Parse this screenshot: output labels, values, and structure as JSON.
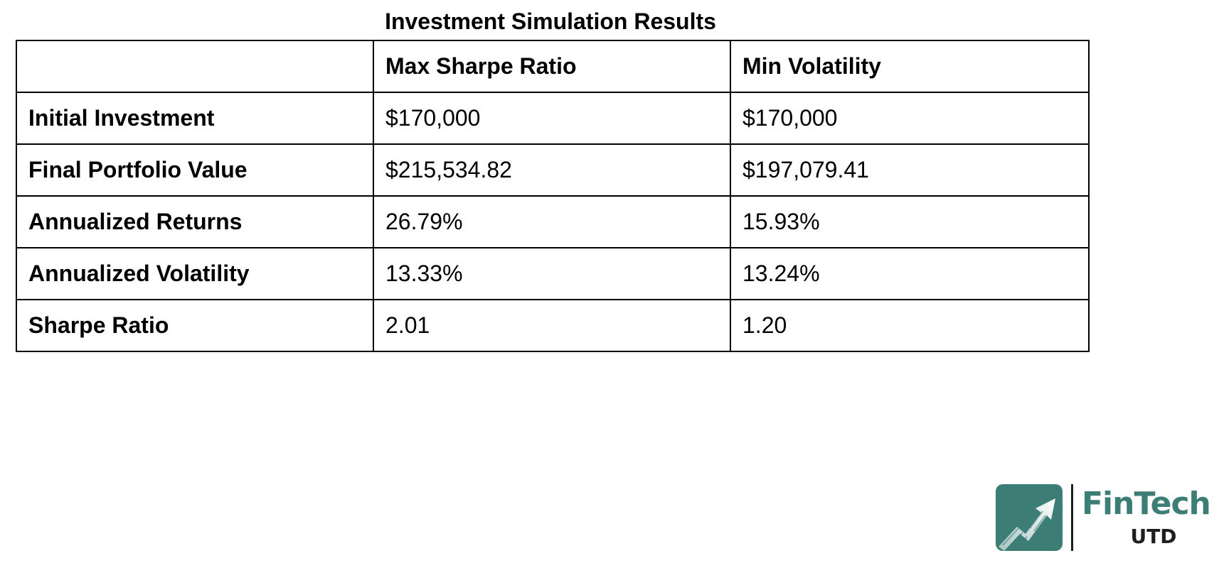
{
  "title": "Investment Simulation Results",
  "table": {
    "headers": [
      "",
      "Max Sharpe Ratio",
      "Min Volatility"
    ],
    "rows": [
      {
        "label": "Initial Investment",
        "max_sharpe": "$170,000",
        "min_volatility": "$170,000"
      },
      {
        "label": "Final Portfolio Value",
        "max_sharpe": "$215,534.82",
        "min_volatility": "$197,079.41"
      },
      {
        "label": "Annualized Returns",
        "max_sharpe": "26.79%",
        "min_volatility": "15.93%"
      },
      {
        "label": "Annualized Volatility",
        "max_sharpe": "13.33%",
        "min_volatility": "13.24%"
      },
      {
        "label": "Sharpe Ratio",
        "max_sharpe": "2.01",
        "min_volatility": "1.20"
      }
    ]
  },
  "logo": {
    "icon": "trending-up-arrow-icon",
    "name": "FinTech",
    "subtitle": "UTD",
    "brand_color": "#3c7d76"
  }
}
